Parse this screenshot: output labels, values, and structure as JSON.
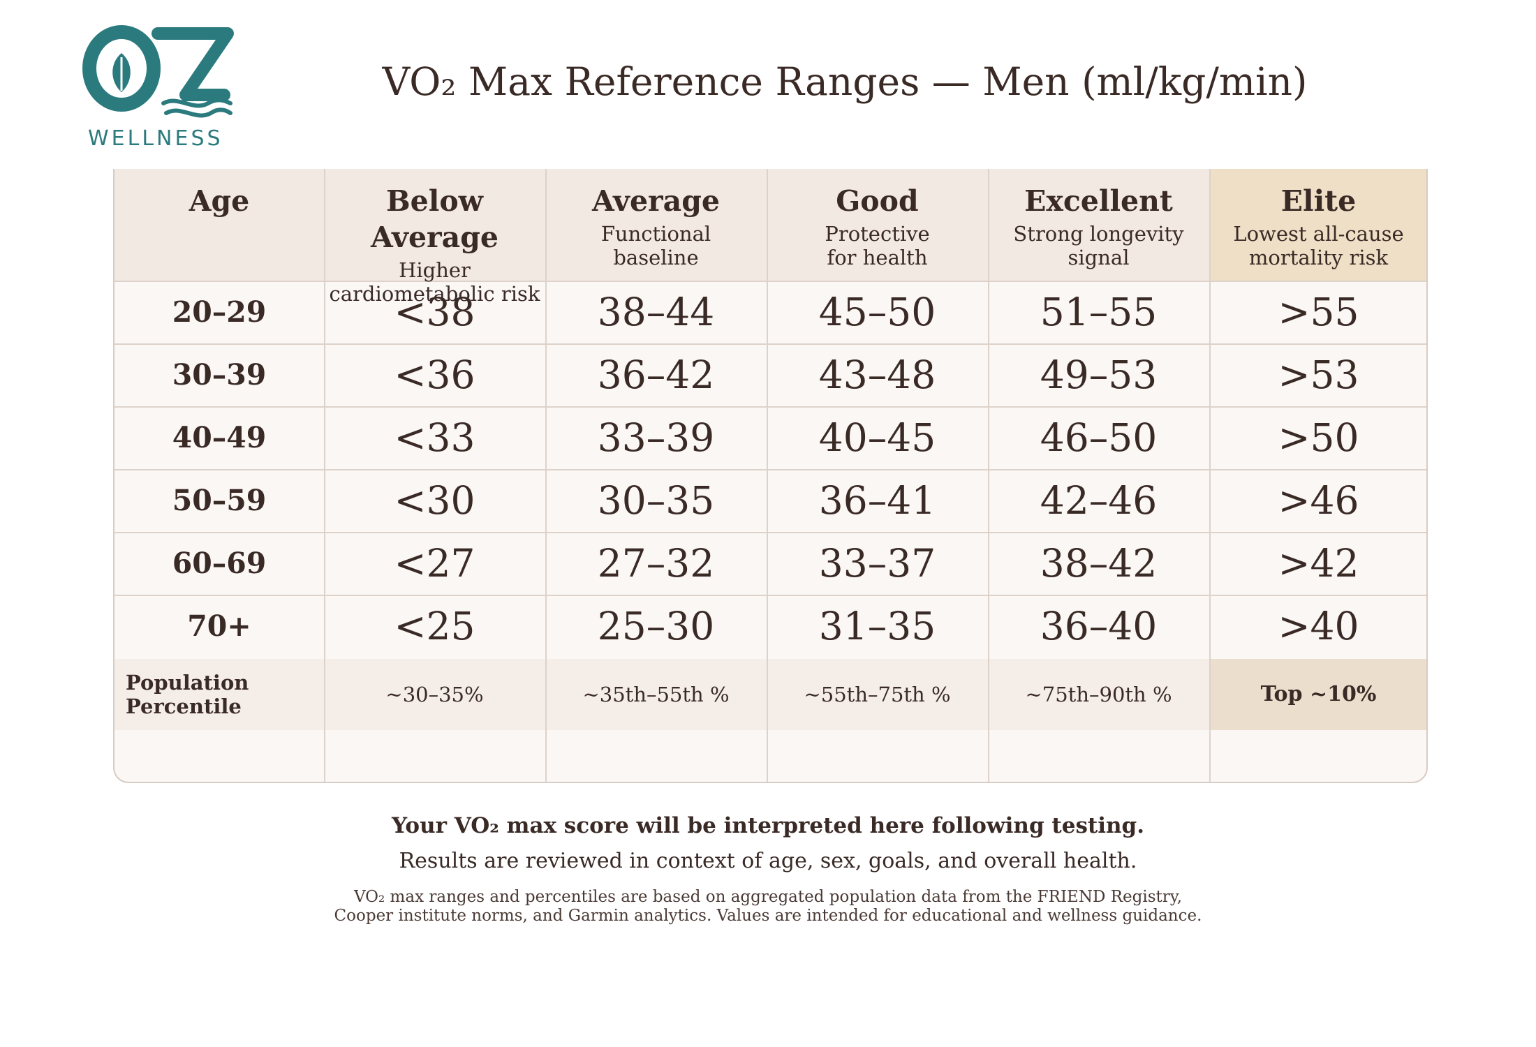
{
  "brand": {
    "logo_monogram": "OZ",
    "logo_text": "WELLNESS",
    "logo_color": "#2b7b7e"
  },
  "title": "VO₂ Max Reference Ranges — Men (ml/kg/min)",
  "table": {
    "columns": [
      {
        "name": "Age",
        "desc1": "",
        "desc2": ""
      },
      {
        "name": "Below Average",
        "desc1": "Higher",
        "desc2": "cardiometabolic risk"
      },
      {
        "name": "Average",
        "desc1": "Functional",
        "desc2": "baseline"
      },
      {
        "name": "Good",
        "desc1": "Protective",
        "desc2": "for health"
      },
      {
        "name": "Excellent",
        "desc1": "Strong longevity",
        "desc2": "signal"
      },
      {
        "name": "Elite",
        "desc1": "Lowest all-cause",
        "desc2": "mortality risk"
      }
    ],
    "rows": [
      [
        "20–29",
        "<38",
        "38–44",
        "45–50",
        "51–55",
        ">55"
      ],
      [
        "30–39",
        "<36",
        "36–42",
        "43–48",
        "49–53",
        ">53"
      ],
      [
        "40–49",
        "<33",
        "33–39",
        "40–45",
        "46–50",
        ">50"
      ],
      [
        "50–59",
        "<30",
        "30–35",
        "36–41",
        "42–46",
        ">46"
      ],
      [
        "60–69",
        "<27",
        "27–32",
        "33–37",
        "38–42",
        ">42"
      ],
      [
        "70+",
        "<25",
        "25–30",
        "31–35",
        "36–40",
        ">40"
      ]
    ],
    "percentile": {
      "label_line1": "Population",
      "label_line2": "Percentile",
      "values": [
        "~30–35%",
        "~35th–55th %",
        "~55th–75th %",
        "~75th–90th %",
        "Top ~10%"
      ]
    },
    "colors": {
      "header_bg": "#f3e9e3",
      "elite_header_bg": "#eedfc6",
      "body_bg": "#faf7f4",
      "percentile_bg": "#f5ede8",
      "elite_percentile_bg": "#ecdecd"
    }
  },
  "notes": {
    "line1": "Your VO₂ max score will be interpreted here following testing.",
    "line2": "Results are reviewed in context of age, sex, goals, and overall health.",
    "line3a": "VO₂ max ranges and percentiles are based on aggregated population data from the FRIEND Registry,",
    "line3b": "Cooper institute norms, and Garmin analytics. Values are intended for educational and wellness guidance."
  }
}
